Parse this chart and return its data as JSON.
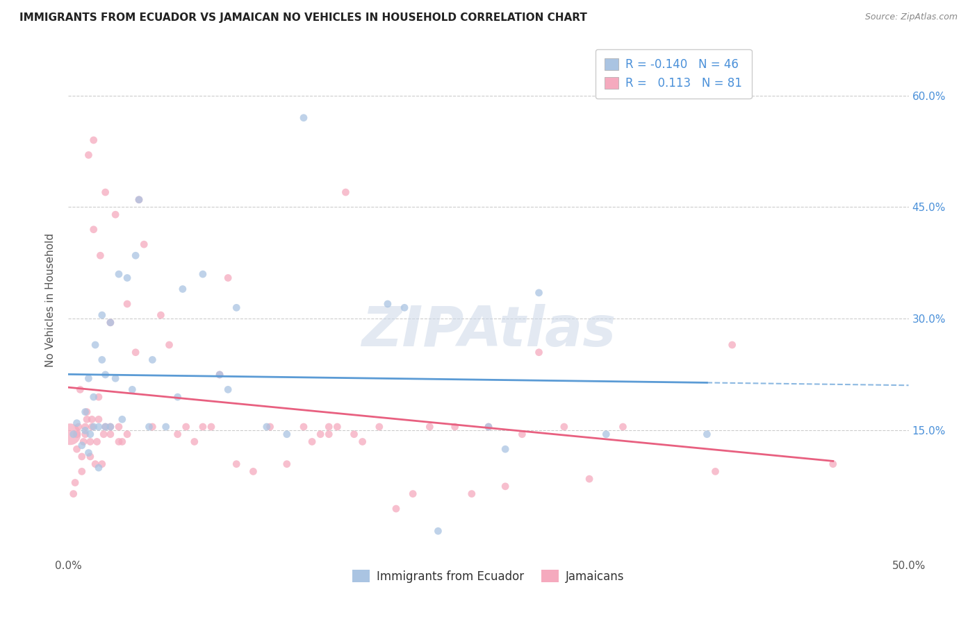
{
  "title": "IMMIGRANTS FROM ECUADOR VS JAMAICAN NO VEHICLES IN HOUSEHOLD CORRELATION CHART",
  "source": "Source: ZipAtlas.com",
  "ylabel": "No Vehicles in Household",
  "yticks": [
    "15.0%",
    "30.0%",
    "45.0%",
    "60.0%"
  ],
  "ytick_values": [
    0.15,
    0.3,
    0.45,
    0.6
  ],
  "xlim": [
    0.0,
    0.5
  ],
  "ylim": [
    -0.02,
    0.67
  ],
  "legend_label1": "Immigrants from Ecuador",
  "legend_label2": "Jamaicans",
  "R1": -0.14,
  "N1": 46,
  "R2": 0.113,
  "N2": 81,
  "blue_color": "#aac4e2",
  "pink_color": "#f5aabe",
  "blue_line_color": "#5b9bd5",
  "pink_line_color": "#e86080",
  "blue_scatter_x": [
    0.003,
    0.005,
    0.008,
    0.01,
    0.01,
    0.012,
    0.012,
    0.013,
    0.015,
    0.015,
    0.016,
    0.018,
    0.018,
    0.02,
    0.02,
    0.022,
    0.022,
    0.025,
    0.025,
    0.028,
    0.03,
    0.032,
    0.035,
    0.038,
    0.04,
    0.042,
    0.048,
    0.05,
    0.058,
    0.065,
    0.068,
    0.08,
    0.09,
    0.095,
    0.1,
    0.118,
    0.13,
    0.14,
    0.19,
    0.2,
    0.22,
    0.25,
    0.26,
    0.28,
    0.32,
    0.38
  ],
  "blue_scatter_y": [
    0.145,
    0.16,
    0.13,
    0.15,
    0.175,
    0.22,
    0.12,
    0.145,
    0.155,
    0.195,
    0.265,
    0.1,
    0.155,
    0.245,
    0.305,
    0.155,
    0.225,
    0.155,
    0.295,
    0.22,
    0.36,
    0.165,
    0.355,
    0.205,
    0.385,
    0.46,
    0.155,
    0.245,
    0.155,
    0.195,
    0.34,
    0.36,
    0.225,
    0.205,
    0.315,
    0.155,
    0.145,
    0.57,
    0.32,
    0.315,
    0.015,
    0.155,
    0.125,
    0.335,
    0.145,
    0.145
  ],
  "blue_scatter_size": [
    60,
    60,
    60,
    60,
    60,
    60,
    60,
    60,
    60,
    60,
    60,
    60,
    60,
    60,
    60,
    60,
    60,
    60,
    60,
    60,
    60,
    60,
    60,
    60,
    60,
    60,
    60,
    60,
    60,
    60,
    60,
    60,
    60,
    60,
    60,
    60,
    60,
    60,
    60,
    60,
    60,
    60,
    60,
    60,
    60,
    60
  ],
  "pink_scatter_x": [
    0.001,
    0.003,
    0.004,
    0.005,
    0.005,
    0.006,
    0.007,
    0.008,
    0.008,
    0.009,
    0.01,
    0.01,
    0.011,
    0.011,
    0.012,
    0.013,
    0.013,
    0.014,
    0.014,
    0.015,
    0.015,
    0.016,
    0.017,
    0.018,
    0.018,
    0.019,
    0.02,
    0.021,
    0.022,
    0.022,
    0.025,
    0.025,
    0.025,
    0.028,
    0.03,
    0.03,
    0.032,
    0.035,
    0.035,
    0.04,
    0.042,
    0.045,
    0.05,
    0.055,
    0.06,
    0.065,
    0.07,
    0.075,
    0.08,
    0.085,
    0.09,
    0.095,
    0.1,
    0.11,
    0.12,
    0.13,
    0.14,
    0.145,
    0.15,
    0.155,
    0.155,
    0.16,
    0.165,
    0.17,
    0.175,
    0.185,
    0.195,
    0.205,
    0.215,
    0.23,
    0.24,
    0.25,
    0.26,
    0.27,
    0.28,
    0.295,
    0.31,
    0.33,
    0.385,
    0.395,
    0.455
  ],
  "pink_scatter_x_large": [
    0.001
  ],
  "pink_scatter_y": [
    0.145,
    0.065,
    0.08,
    0.125,
    0.145,
    0.155,
    0.205,
    0.095,
    0.115,
    0.135,
    0.145,
    0.155,
    0.165,
    0.175,
    0.52,
    0.115,
    0.135,
    0.155,
    0.165,
    0.42,
    0.54,
    0.105,
    0.135,
    0.165,
    0.195,
    0.385,
    0.105,
    0.145,
    0.155,
    0.47,
    0.145,
    0.155,
    0.295,
    0.44,
    0.135,
    0.155,
    0.135,
    0.145,
    0.32,
    0.255,
    0.46,
    0.4,
    0.155,
    0.305,
    0.265,
    0.145,
    0.155,
    0.135,
    0.155,
    0.155,
    0.225,
    0.355,
    0.105,
    0.095,
    0.155,
    0.105,
    0.155,
    0.135,
    0.145,
    0.155,
    0.145,
    0.155,
    0.47,
    0.145,
    0.135,
    0.155,
    0.045,
    0.065,
    0.155,
    0.155,
    0.065,
    0.155,
    0.075,
    0.145,
    0.255,
    0.155,
    0.085,
    0.155,
    0.095,
    0.265,
    0.105
  ],
  "pink_scatter_size": [
    500,
    60,
    60,
    60,
    60,
    60,
    60,
    60,
    60,
    60,
    60,
    60,
    60,
    60,
    60,
    60,
    60,
    60,
    60,
    60,
    60,
    60,
    60,
    60,
    60,
    60,
    60,
    60,
    60,
    60,
    60,
    60,
    60,
    60,
    60,
    60,
    60,
    60,
    60,
    60,
    60,
    60,
    60,
    60,
    60,
    60,
    60,
    60,
    60,
    60,
    60,
    60,
    60,
    60,
    60,
    60,
    60,
    60,
    60,
    60,
    60,
    60,
    60,
    60,
    60,
    60,
    60,
    60,
    60,
    60,
    60,
    60,
    60,
    60,
    60,
    60,
    60,
    60,
    60,
    60,
    60
  ]
}
